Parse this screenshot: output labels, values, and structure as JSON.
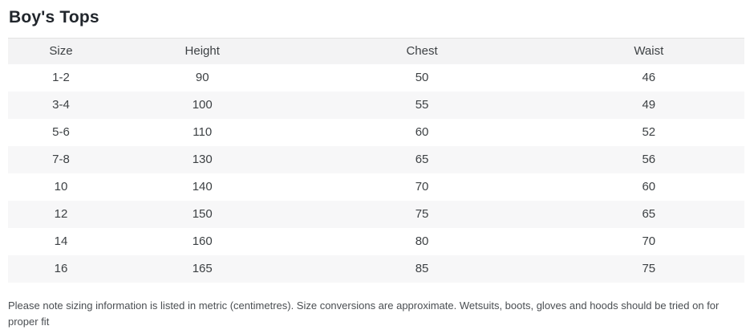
{
  "page": {
    "title": "Boy's Tops"
  },
  "table": {
    "columns": [
      "Size",
      "Height",
      "Chest",
      "Waist"
    ],
    "rows": [
      [
        "1-2",
        "90",
        "50",
        "46"
      ],
      [
        "3-4",
        "100",
        "55",
        "49"
      ],
      [
        "5-6",
        "110",
        "60",
        "52"
      ],
      [
        "7-8",
        "130",
        "65",
        "56"
      ],
      [
        "10",
        "140",
        "70",
        "60"
      ],
      [
        "12",
        "150",
        "75",
        "65"
      ],
      [
        "14",
        "160",
        "80",
        "70"
      ],
      [
        "16",
        "165",
        "85",
        "75"
      ]
    ]
  },
  "note": "Please note sizing information is listed in metric (centimetres). Size conversions are approximate. Wetsuits, boots, gloves and hoods should be tried on for proper fit",
  "colors": {
    "header_row_bg": "#f3f3f4",
    "stripe_row_bg": "#f7f7f8",
    "table_top_border": "#e3e3e3",
    "title_text": "#21262c",
    "cell_text": "#3d4144",
    "note_text": "#4a4e52"
  }
}
